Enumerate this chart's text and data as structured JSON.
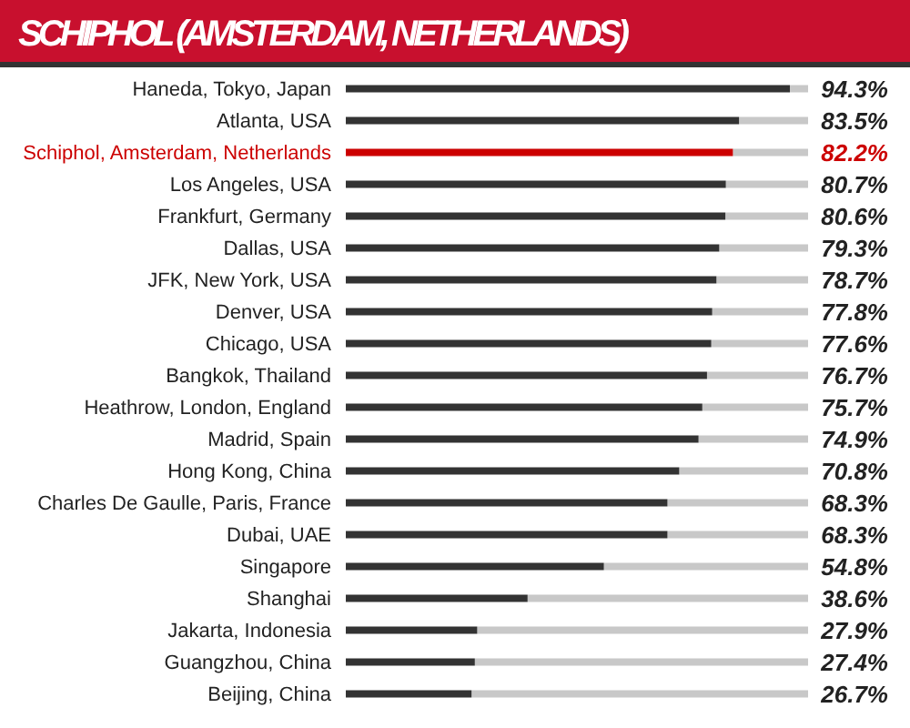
{
  "chart_data": {
    "type": "bar",
    "orientation": "horizontal",
    "title": "SCHIPHOL (AMSTERDAM, NETHERLANDS)",
    "categories": [
      "Haneda, Tokyo, Japan",
      "Atlanta, USA",
      "Schiphol, Amsterdam, Netherlands",
      "Los Angeles, USA",
      "Frankfurt, Germany",
      "Dallas, USA",
      "JFK, New York, USA",
      "Denver, USA",
      "Chicago, USA",
      "Bangkok, Thailand",
      "Heathrow, London, England",
      "Madrid, Spain",
      "Hong Kong, China",
      "Charles De Gaulle, Paris, France",
      "Dubai, UAE",
      "Singapore",
      "Shanghai",
      "Jakarta, Indonesia",
      "Guangzhou, China",
      "Beijing, China"
    ],
    "values": [
      94.3,
      83.5,
      82.2,
      80.7,
      80.6,
      79.3,
      78.7,
      77.8,
      77.6,
      76.7,
      75.7,
      74.9,
      70.8,
      68.3,
      68.3,
      54.8,
      38.6,
      27.9,
      27.4,
      26.7
    ],
    "value_labels": [
      "94.3%",
      "83.5%",
      "82.2%",
      "80.7%",
      "80.6%",
      "79.3%",
      "78.7%",
      "77.8%",
      "77.6%",
      "76.7%",
      "75.7%",
      "74.9%",
      "70.8%",
      "68.3%",
      "68.3%",
      "54.8%",
      "38.6%",
      "27.9%",
      "27.4%",
      "26.7%"
    ],
    "colors": [
      "#333333",
      "#333333",
      "#cc0000",
      "#333333",
      "#333333",
      "#333333",
      "#333333",
      "#333333",
      "#333333",
      "#333333",
      "#333333",
      "#333333",
      "#333333",
      "#333333",
      "#333333",
      "#333333",
      "#333333",
      "#333333",
      "#333333",
      "#333333"
    ],
    "tick_labels": "y"
  }
}
